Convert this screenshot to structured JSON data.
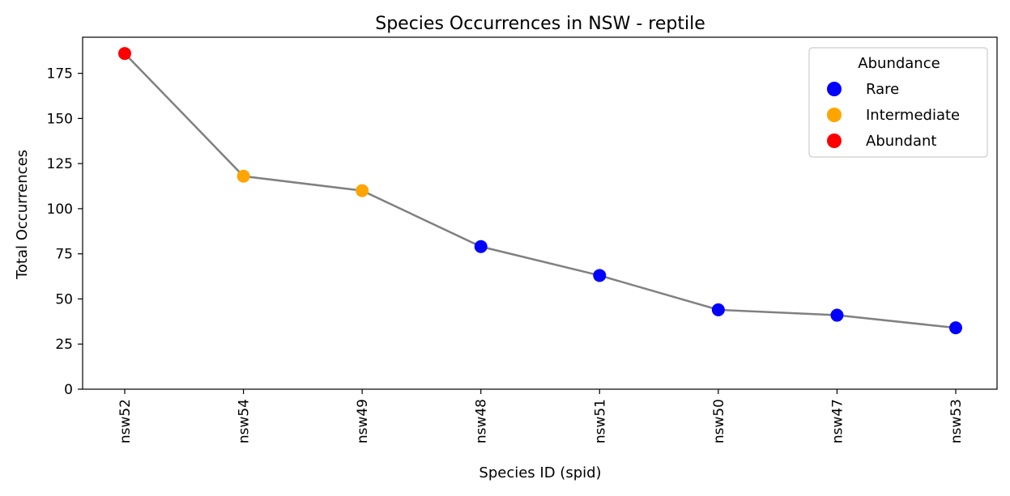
{
  "chart_data": {
    "type": "line",
    "title": "Species Occurrences in NSW - reptile",
    "xlabel": "Species ID (spid)",
    "ylabel": "Total Occurrences",
    "categories": [
      "nsw52",
      "nsw54",
      "nsw49",
      "nsw48",
      "nsw51",
      "nsw50",
      "nsw47",
      "nsw53"
    ],
    "values": [
      186,
      118,
      110,
      79,
      63,
      44,
      41,
      34
    ],
    "abundance": [
      "Abundant",
      "Intermediate",
      "Intermediate",
      "Rare",
      "Rare",
      "Rare",
      "Rare",
      "Rare"
    ],
    "ylim": [
      0,
      195
    ],
    "yticks": [
      0,
      25,
      50,
      75,
      100,
      125,
      150,
      175
    ],
    "line_color": "#808080",
    "grid": false,
    "legend": {
      "title": "Abundance",
      "placement": "top-right",
      "entries": [
        {
          "key": "Rare",
          "label": "Rare",
          "color": "#0000ff"
        },
        {
          "key": "Intermediate",
          "label": "Intermediate",
          "color": "#ffa500"
        },
        {
          "key": "Abundant",
          "label": "Abundant",
          "color": "#ff0000"
        }
      ]
    }
  }
}
